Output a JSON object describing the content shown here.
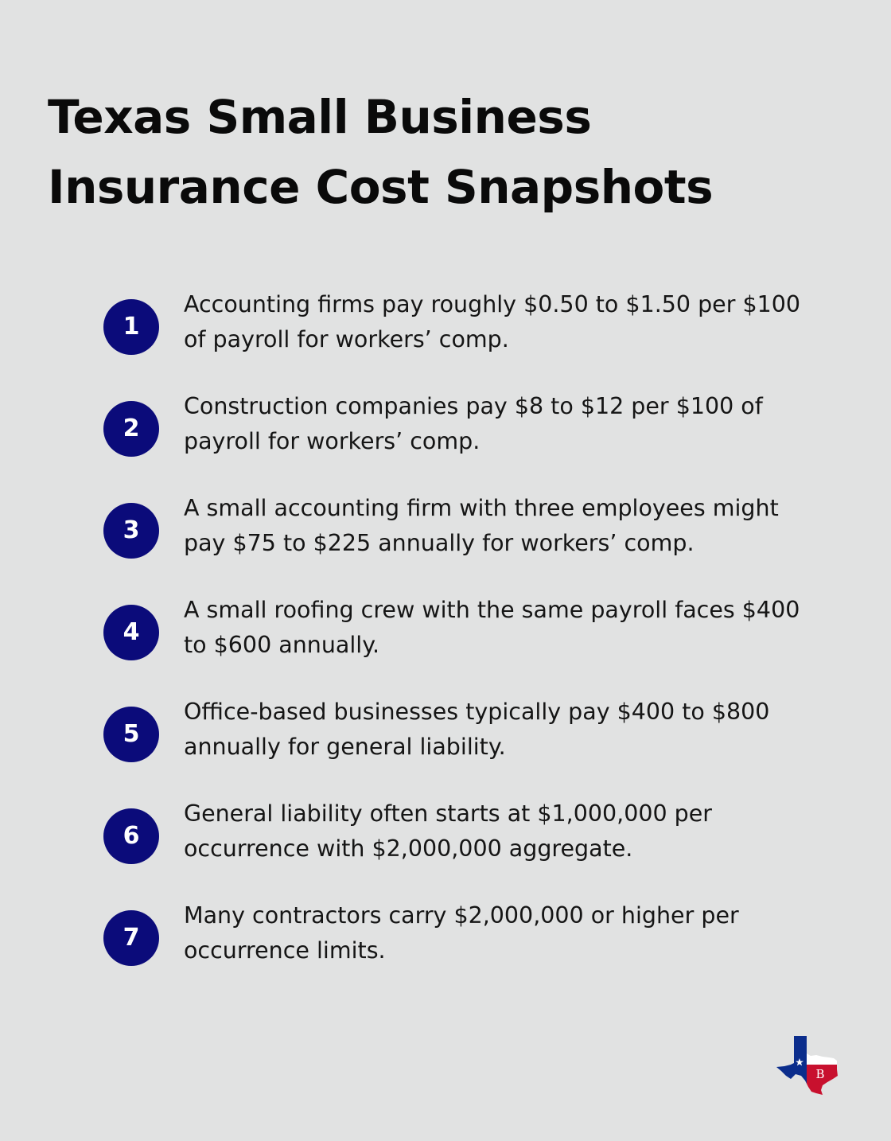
{
  "title_lines": [
    "Texas Small Business",
    "Insurance Cost Snapshots"
  ],
  "items": [
    {
      "number": "1",
      "lines": [
        "Accounting firms pay roughly $0.50 to $1.50 per $100",
        "of payroll for workers’ comp."
      ]
    },
    {
      "number": "2",
      "lines": [
        "Construction companies pay $8 to $12 per $100 of",
        "payroll for workers’ comp."
      ]
    },
    {
      "number": "3",
      "lines": [
        "A small accounting firm with three employees might",
        "pay $75 to $225 annually for workers’ comp."
      ]
    },
    {
      "number": "4",
      "lines": [
        "A small roofing crew with the same payroll faces $400",
        "to $600 annually."
      ]
    },
    {
      "number": "5",
      "lines": [
        "Office-based businesses typically pay $400 to $800",
        "annually for general liability."
      ]
    },
    {
      "number": "6",
      "lines": [
        "General liability often starts at $1,000,000 per",
        "occurrence with $2,000,000 aggregate."
      ]
    },
    {
      "number": "7",
      "lines": [
        "Many contractors carry $2,000,000 or higher per",
        "occurrence limits."
      ]
    }
  ],
  "logo": {
    "icon": "texas-flag-map-logo",
    "monogram": "B",
    "colors": {
      "blue": "#0b2d8c",
      "red": "#c8102e",
      "white": "#ffffff"
    }
  },
  "colors": {
    "background": "#e1e2e2",
    "badge": "#0b0b7a",
    "text": "#151515"
  }
}
